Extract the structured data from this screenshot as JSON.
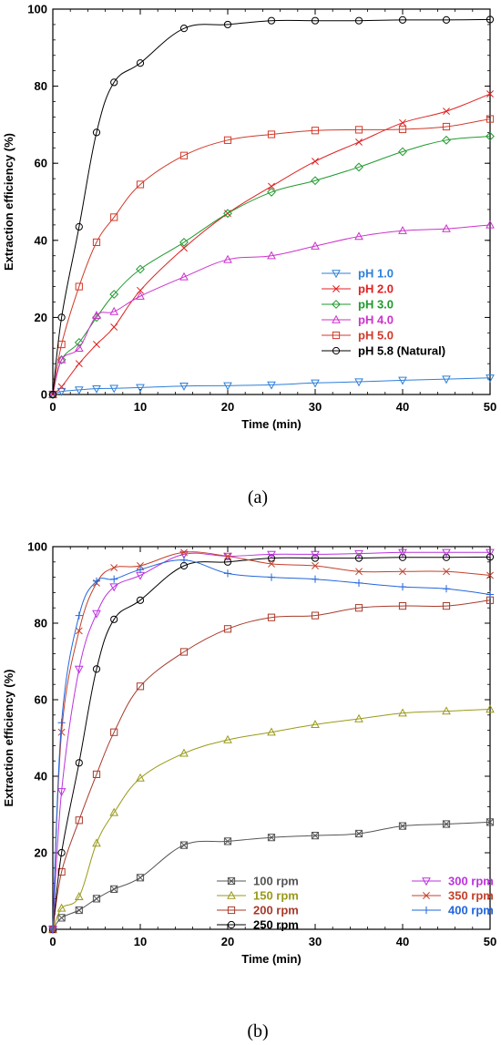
{
  "chart_data": [
    {
      "type": "line",
      "panel_label": "(a)",
      "xlabel": "Time (min)",
      "ylabel": "Extraction efficiency (%)",
      "xlim": [
        0,
        50
      ],
      "ylim": [
        0,
        100
      ],
      "xticks": [
        "0",
        "10",
        "20",
        "30",
        "40",
        "50"
      ],
      "yticks": [
        "0",
        "20",
        "40",
        "60",
        "80",
        "100"
      ],
      "grid": false,
      "legend_position": "bottom-right",
      "series": [
        {
          "name": "pH 1.0",
          "color": "#2e7fd8",
          "marker": "triangle-down",
          "x": [
            0,
            1,
            3,
            5,
            7,
            10,
            15,
            20,
            25,
            30,
            35,
            40,
            45,
            50
          ],
          "y": [
            0,
            0.8,
            1.2,
            1.5,
            1.6,
            1.8,
            2.2,
            2.3,
            2.5,
            3.0,
            3.3,
            3.7,
            4.0,
            4.3
          ]
        },
        {
          "name": "pH 2.0",
          "color": "#e02020",
          "marker": "x",
          "x": [
            0,
            1,
            3,
            5,
            7,
            10,
            15,
            20,
            25,
            30,
            35,
            40,
            45,
            50
          ],
          "y": [
            0,
            2,
            8,
            13,
            17.5,
            27,
            38,
            47,
            54,
            60.5,
            65.5,
            70.5,
            73.5,
            78
          ]
        },
        {
          "name": "pH 3.0",
          "color": "#1f9a2e",
          "marker": "diamond",
          "x": [
            0,
            1,
            3,
            5,
            7,
            10,
            15,
            20,
            25,
            30,
            35,
            40,
            45,
            50
          ],
          "y": [
            0,
            9,
            13.5,
            20,
            26,
            32.5,
            39.5,
            47,
            52.5,
            55.5,
            59,
            63,
            66,
            67
          ]
        },
        {
          "name": "pH 4.0",
          "color": "#cc33cc",
          "marker": "triangle-up",
          "x": [
            0,
            1,
            3,
            5,
            7,
            10,
            15,
            20,
            25,
            30,
            35,
            40,
            45,
            50
          ],
          "y": [
            0,
            9,
            12,
            20.5,
            21.5,
            25.5,
            30.5,
            35,
            36,
            38.5,
            41,
            42.5,
            43,
            44
          ]
        },
        {
          "name": "pH 5.0",
          "color": "#d03a2a",
          "marker": "square",
          "x": [
            0,
            1,
            3,
            5,
            7,
            10,
            15,
            20,
            25,
            30,
            35,
            40,
            45,
            50
          ],
          "y": [
            0,
            13,
            28,
            39.5,
            46,
            54.5,
            62,
            66,
            67.5,
            68.5,
            68.7,
            68.8,
            69.5,
            71.5
          ]
        },
        {
          "name": "pH 5.8 (Natural)",
          "color": "#000000",
          "marker": "circle",
          "x": [
            0,
            1,
            3,
            5,
            7,
            10,
            15,
            20,
            25,
            30,
            35,
            40,
            45,
            50
          ],
          "y": [
            0,
            20,
            43.5,
            68,
            81,
            86,
            95,
            96,
            97,
            97,
            97,
            97.2,
            97.2,
            97.3
          ]
        }
      ]
    },
    {
      "type": "line",
      "panel_label": "(b)",
      "xlabel": "Time (min)",
      "ylabel": "Extraction efficiency (%)",
      "xlim": [
        0,
        50
      ],
      "ylim": [
        0,
        100
      ],
      "xticks": [
        "0",
        "10",
        "20",
        "30",
        "40",
        "50"
      ],
      "yticks": [
        "0",
        "20",
        "40",
        "60",
        "80",
        "100"
      ],
      "grid": false,
      "legend_position": "bottom-right",
      "series": [
        {
          "name": "100 rpm",
          "color": "#555555",
          "marker": "boxed-x",
          "x": [
            0,
            1,
            3,
            5,
            7,
            10,
            15,
            20,
            25,
            30,
            35,
            40,
            45,
            50
          ],
          "y": [
            0,
            3,
            5,
            8,
            10.5,
            13.5,
            22,
            23,
            24,
            24.5,
            25,
            27,
            27.5,
            28
          ]
        },
        {
          "name": "150 rpm",
          "color": "#9a9a1a",
          "marker": "triangle-up",
          "x": [
            0,
            1,
            3,
            5,
            7,
            10,
            15,
            20,
            25,
            30,
            35,
            40,
            45,
            50
          ],
          "y": [
            0,
            5.5,
            8.5,
            22.5,
            30.5,
            39.5,
            46,
            49.5,
            51.5,
            53.5,
            55,
            56.5,
            57,
            57.5
          ]
        },
        {
          "name": "200 rpm",
          "color": "#a83a2a",
          "marker": "square",
          "x": [
            0,
            1,
            3,
            5,
            7,
            10,
            15,
            20,
            25,
            30,
            35,
            40,
            45,
            50
          ],
          "y": [
            0,
            15,
            28.5,
            40.5,
            51.5,
            63.5,
            72.5,
            78.5,
            81.5,
            82,
            84,
            84.5,
            84.5,
            86
          ]
        },
        {
          "name": "250 rpm",
          "color": "#000000",
          "marker": "circle",
          "x": [
            0,
            1,
            3,
            5,
            7,
            10,
            15,
            20,
            25,
            30,
            35,
            40,
            45,
            50
          ],
          "y": [
            0,
            20,
            43.5,
            68,
            81,
            86,
            95,
            96,
            97,
            97,
            97,
            97.2,
            97.2,
            97.3
          ]
        },
        {
          "name": "300 rpm",
          "color": "#bb33dd",
          "marker": "triangle-down",
          "x": [
            0,
            1,
            3,
            5,
            7,
            10,
            15,
            20,
            25,
            30,
            35,
            40,
            45,
            50
          ],
          "y": [
            0,
            36,
            68,
            82.5,
            89.5,
            92.5,
            98,
            97.5,
            98,
            98,
            98.2,
            98.5,
            98.5,
            98.5
          ]
        },
        {
          "name": "350 rpm",
          "color": "#c4402a",
          "marker": "x",
          "x": [
            0,
            1,
            3,
            5,
            7,
            10,
            15,
            20,
            25,
            30,
            35,
            40,
            45,
            50
          ],
          "y": [
            0,
            51.5,
            78,
            90.5,
            94.5,
            95,
            98.5,
            97.5,
            95.5,
            95,
            93.5,
            93.5,
            93.5,
            92.5
          ]
        },
        {
          "name": "400 rpm",
          "color": "#2266dd",
          "marker": "plus",
          "x": [
            0,
            1,
            3,
            5,
            7,
            10,
            15,
            20,
            25,
            30,
            35,
            40,
            45,
            50
          ],
          "y": [
            0,
            54,
            82,
            91,
            91.5,
            94,
            96.5,
            93,
            92,
            91.5,
            90.5,
            89.5,
            89,
            87.5
          ]
        }
      ]
    }
  ]
}
